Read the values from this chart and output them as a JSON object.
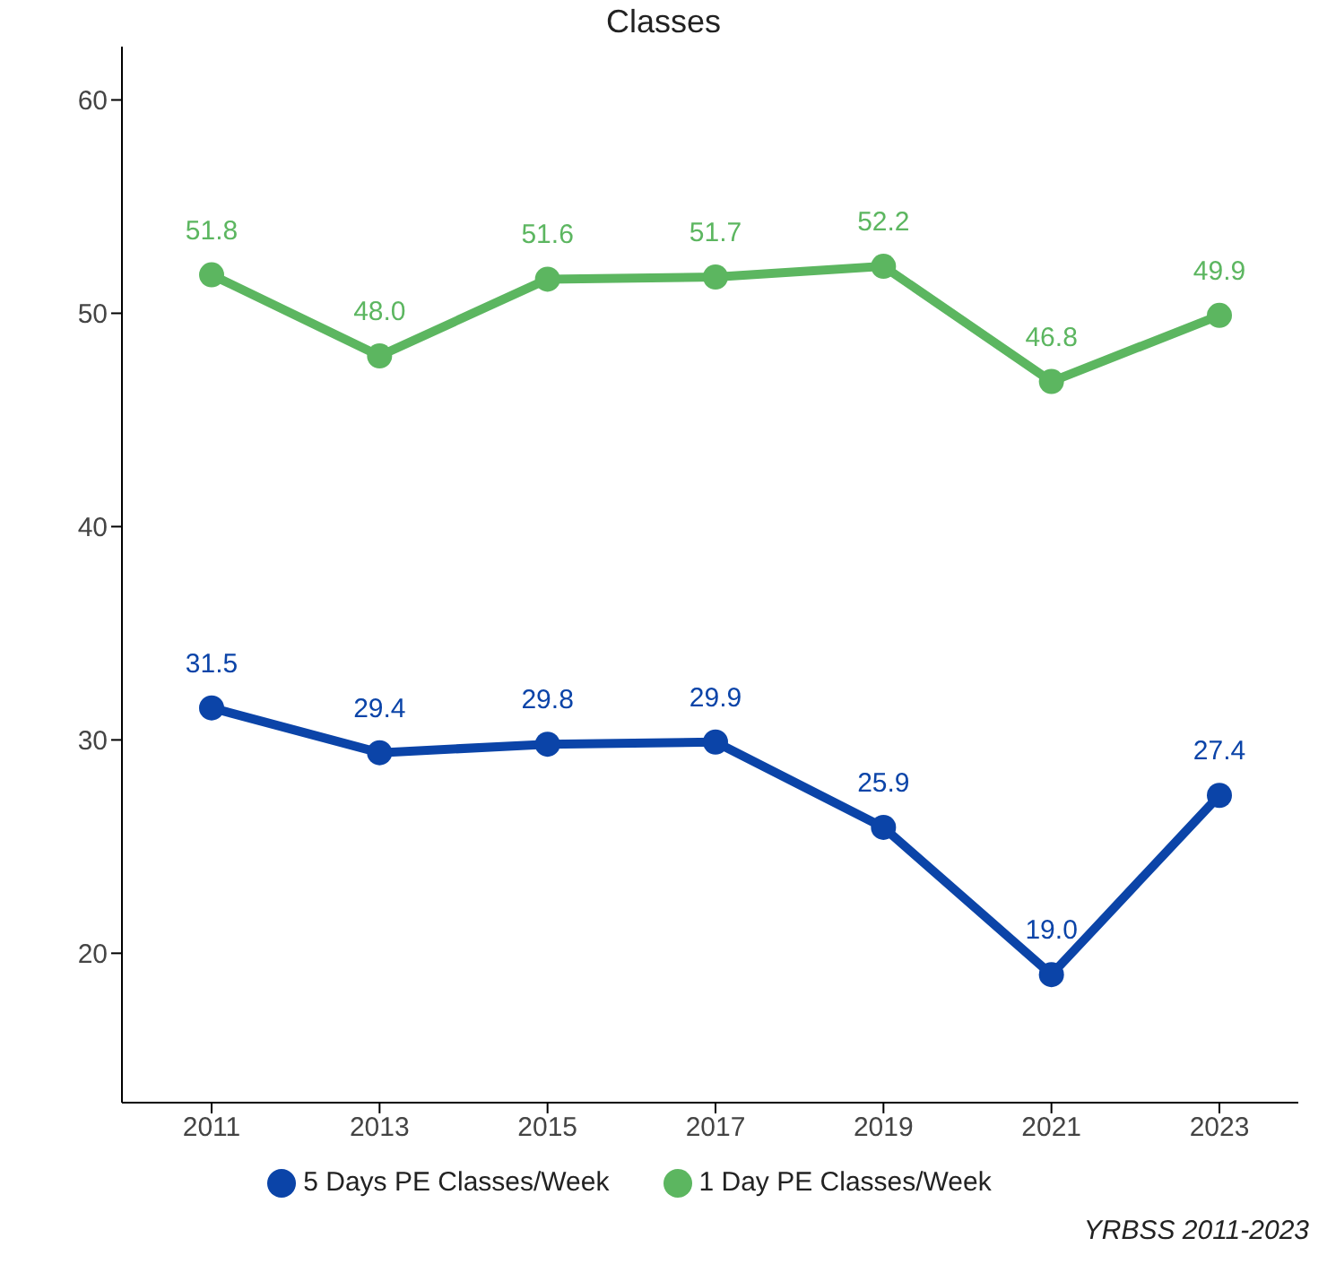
{
  "chart_data": {
    "type": "line",
    "title": "Classes",
    "categories": [
      "2011",
      "2013",
      "2015",
      "2017",
      "2019",
      "2021",
      "2023"
    ],
    "series": [
      {
        "name": "5 Days PE Classes/Week",
        "color": "#0b44a8",
        "values": [
          31.5,
          29.4,
          29.8,
          29.9,
          25.9,
          19,
          27.4
        ],
        "value_labels": [
          "31.5",
          "29.4",
          "29.8",
          "29.9",
          "25.9",
          "19.0",
          "27.4"
        ]
      },
      {
        "name": "1 Day PE Classes/Week",
        "color": "#5cb660",
        "values": [
          51.8,
          48,
          51.6,
          51.7,
          52.2,
          46.8,
          49.9
        ],
        "value_labels": [
          "51.8",
          "48.0",
          "51.6",
          "51.7",
          "52.2",
          "46.8",
          "49.9"
        ]
      }
    ],
    "ylim": [
      13,
      62.5
    ],
    "yticks": [
      20,
      30,
      40,
      50,
      60
    ],
    "grid": false,
    "legend": "bottom",
    "marker": "circle",
    "line_style": "solid",
    "annotations": [
      "YRBSS 2011-2023"
    ]
  }
}
